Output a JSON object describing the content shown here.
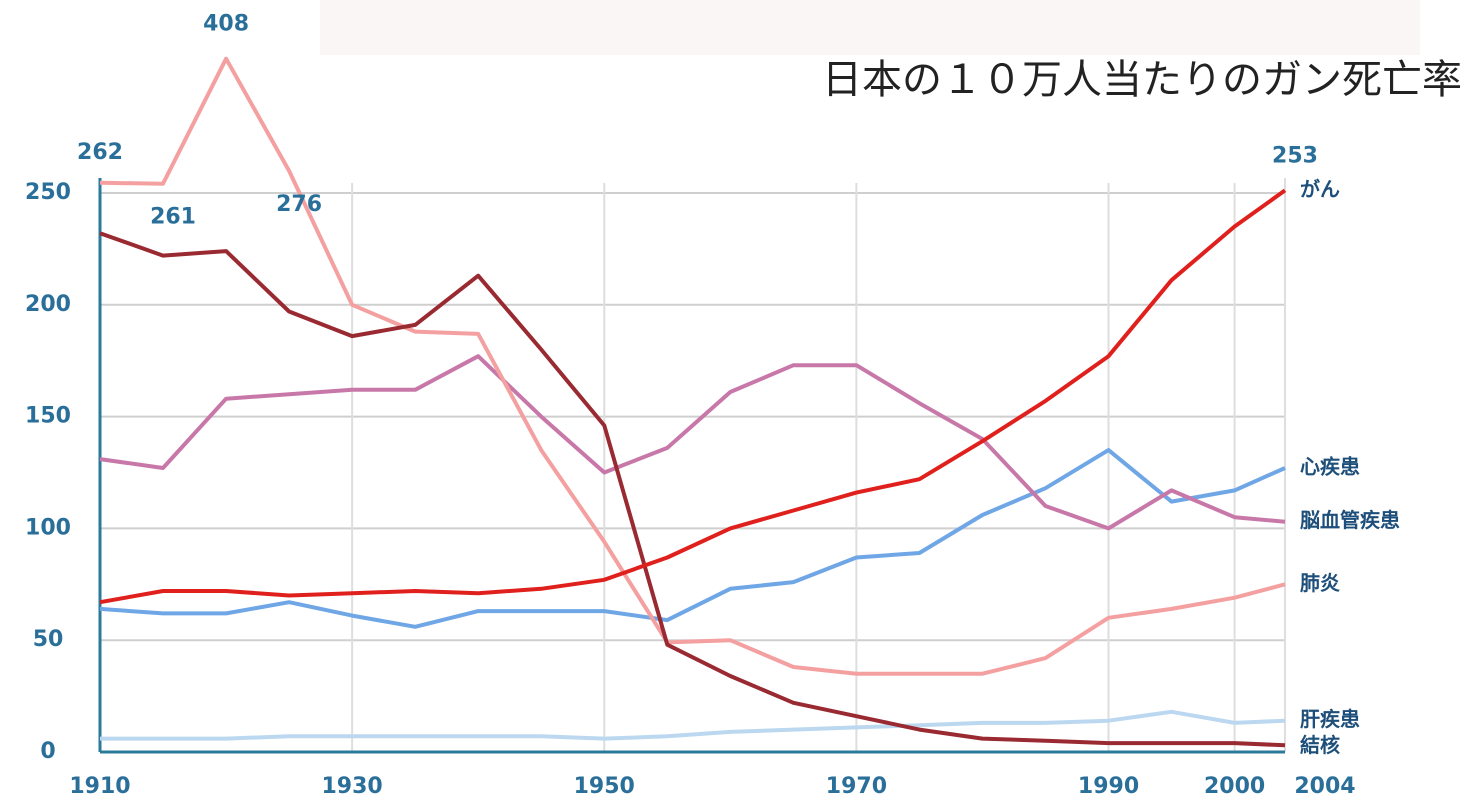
{
  "chart_data": {
    "type": "line",
    "title": "日本の１０万人当たりのガン死亡率",
    "x": [
      1910,
      1915,
      1920,
      1925,
      1930,
      1935,
      1940,
      1945,
      1950,
      1955,
      1960,
      1965,
      1970,
      1975,
      1980,
      1985,
      1990,
      1995,
      2000,
      2004
    ],
    "series": [
      {
        "name": "がん",
        "color": "#e0201c",
        "values": [
          67,
          72,
          72,
          70,
          71,
          72,
          71,
          73,
          77,
          87,
          100,
          108,
          116,
          122,
          139,
          157,
          177,
          211,
          235,
          253
        ]
      },
      {
        "name": "心疾患",
        "color": "#6fa6e6",
        "values": [
          64,
          62,
          62,
          67,
          61,
          56,
          63,
          63,
          63,
          59,
          73,
          76,
          87,
          89,
          106,
          118,
          135,
          112,
          117,
          127
        ]
      },
      {
        "name": "脳血管疾患",
        "color": "#c878a8",
        "values": [
          131,
          127,
          158,
          160,
          162,
          162,
          177,
          150,
          125,
          136,
          161,
          173,
          173,
          156,
          140,
          110,
          100,
          117,
          105,
          103
        ]
      },
      {
        "name": "肺炎",
        "color": "#f4a0a0",
        "values": [
          262,
          261,
          408,
          276,
          200,
          188,
          187,
          135,
          94,
          49,
          50,
          38,
          35,
          35,
          35,
          42,
          60,
          64,
          69,
          75
        ]
      },
      {
        "name": "肝疾患",
        "color": "#bcd8f0",
        "values": [
          6,
          6,
          6,
          7,
          7,
          7,
          7,
          7,
          6,
          7,
          9,
          10,
          11,
          12,
          13,
          13,
          14,
          18,
          13,
          14
        ]
      },
      {
        "name": "結核",
        "color": "#9a2a32",
        "values": [
          232,
          222,
          224,
          197,
          186,
          191,
          213,
          180,
          146,
          48,
          34,
          22,
          16,
          10,
          6,
          5,
          4,
          4,
          4,
          3
        ]
      }
    ],
    "xlim": [
      1910,
      2004
    ],
    "xticks": [
      1910,
      1930,
      1950,
      1970,
      1990,
      2000,
      2004
    ],
    "ylim": [
      0,
      250
    ],
    "yticks": [
      0,
      50,
      100,
      150,
      200,
      250
    ],
    "grid": true
  }
}
